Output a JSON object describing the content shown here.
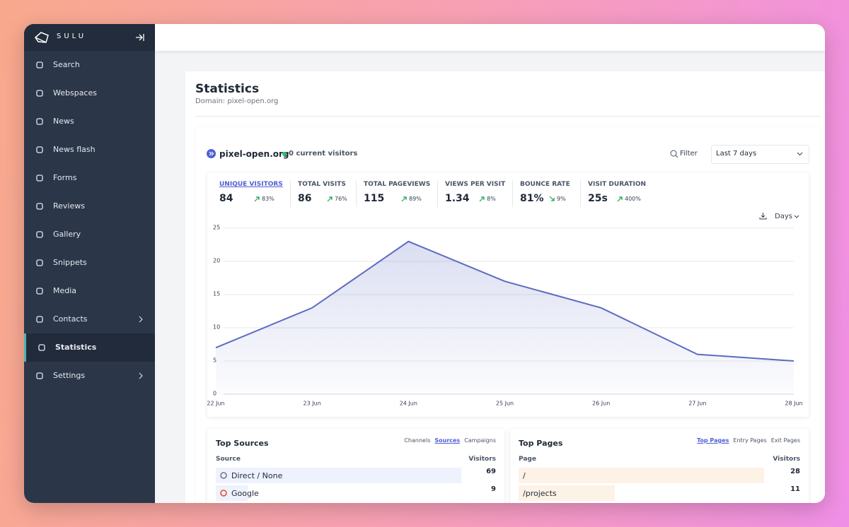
{
  "sidebar": {
    "brand": "SULU",
    "items": [
      "Search",
      "Webspaces",
      "News",
      "News flash",
      "Forms",
      "Reviews",
      "Gallery",
      "Snippets",
      "Media",
      "Contacts",
      "Statistics",
      "Settings"
    ]
  },
  "header": {
    "title": "Statistics",
    "subtitle": "Domain: pixel-open.org"
  },
  "site": {
    "name": "pixel-open.org",
    "visitors": "0 current visitors",
    "filter": "Filter",
    "range": "Last 7 days",
    "interval": "Days"
  },
  "metrics": [
    {
      "label": "UNIQUE VISITORS",
      "value": "84",
      "change": "83%",
      "trend": "up"
    },
    {
      "label": "TOTAL VISITS",
      "value": "86",
      "change": "76%",
      "trend": "up"
    },
    {
      "label": "TOTAL PAGEVIEWS",
      "value": "115",
      "change": "89%",
      "trend": "up"
    },
    {
      "label": "VIEWS PER VISIT",
      "value": "1.34",
      "change": "8%",
      "trend": "up"
    },
    {
      "label": "BOUNCE RATE",
      "value": "81%",
      "change": "9%",
      "trend": "down"
    },
    {
      "label": "VISIT DURATION",
      "value": "25s",
      "change": "400%",
      "trend": "up"
    }
  ],
  "chart_data": {
    "type": "line",
    "categories": [
      "22 Jun",
      "23 Jun",
      "24 Jun",
      "25 Jun",
      "26 Jun",
      "27 Jun",
      "28 Jun"
    ],
    "values": [
      7,
      13,
      23,
      17,
      13,
      6,
      5
    ],
    "ylim": [
      0,
      25
    ],
    "yticks": [
      0,
      5,
      10,
      15,
      20,
      25
    ],
    "color": "#5c6bc0",
    "grid": true
  },
  "sources": {
    "title": "Top Sources",
    "tabs": [
      "Channels",
      "Sources",
      "Campaigns"
    ],
    "columns": [
      "Source",
      "Visitors"
    ],
    "rows": [
      [
        "Direct / None",
        69
      ],
      [
        "Google",
        9
      ]
    ]
  },
  "pages": {
    "title": "Top Pages",
    "tabs": [
      "Top Pages",
      "Entry Pages",
      "Exit Pages"
    ],
    "columns": [
      "Page",
      "Visitors"
    ],
    "rows": [
      [
        "/",
        28
      ],
      [
        "/projects",
        11
      ]
    ]
  }
}
